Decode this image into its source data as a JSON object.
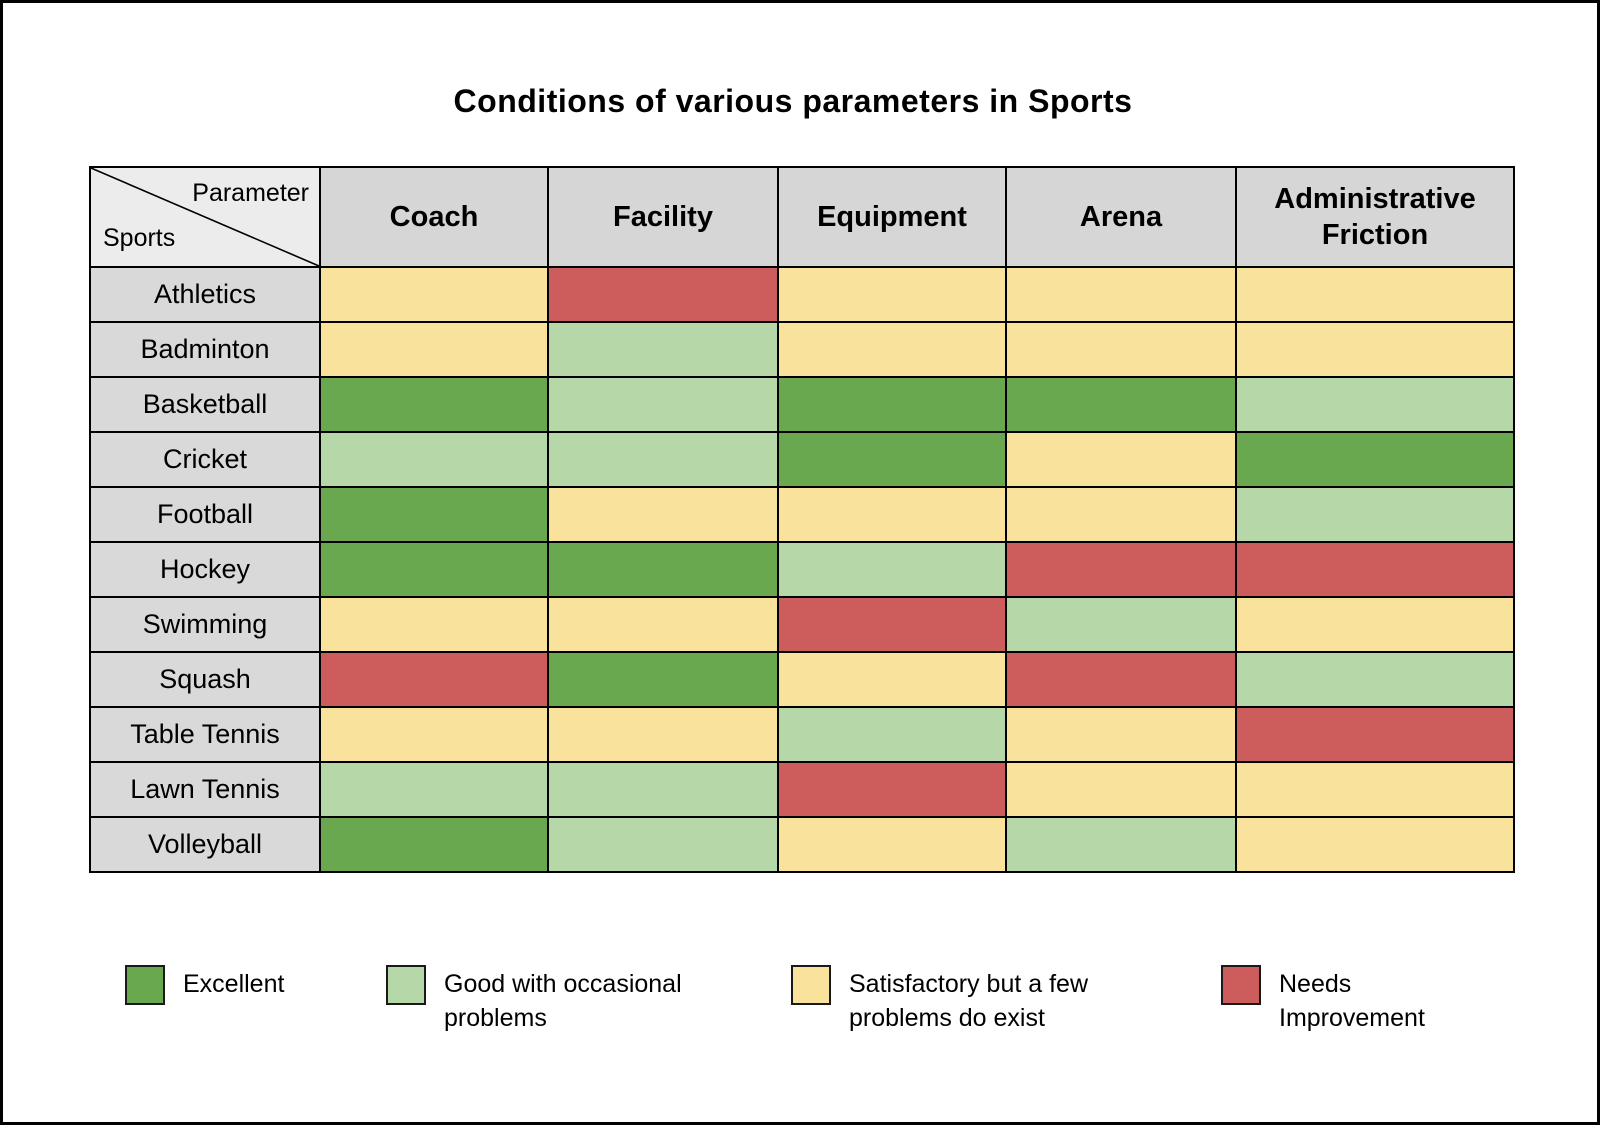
{
  "title": "Conditions of various parameters in Sports",
  "chart_data": {
    "type": "heatmap",
    "title": "Conditions of various parameters in Sports",
    "corner_labels": {
      "top_right": "Parameter",
      "bottom_left": "Sports"
    },
    "columns": [
      "Coach",
      "Facility",
      "Equipment",
      "Arena",
      "Administrative Friction"
    ],
    "rows": [
      "Athletics",
      "Badminton",
      "Basketball",
      "Cricket",
      "Football",
      "Hockey",
      "Swimming",
      "Squash",
      "Table Tennis",
      "Lawn Tennis",
      "Volleyball"
    ],
    "values": [
      [
        "satisfactory",
        "needs_improvement",
        "satisfactory",
        "satisfactory",
        "satisfactory"
      ],
      [
        "satisfactory",
        "good",
        "satisfactory",
        "satisfactory",
        "satisfactory"
      ],
      [
        "excellent",
        "good",
        "excellent",
        "excellent",
        "good"
      ],
      [
        "good",
        "good",
        "excellent",
        "satisfactory",
        "excellent"
      ],
      [
        "excellent",
        "satisfactory",
        "satisfactory",
        "satisfactory",
        "good"
      ],
      [
        "excellent",
        "excellent",
        "good",
        "needs_improvement",
        "needs_improvement"
      ],
      [
        "satisfactory",
        "satisfactory",
        "needs_improvement",
        "good",
        "satisfactory"
      ],
      [
        "needs_improvement",
        "excellent",
        "satisfactory",
        "needs_improvement",
        "good"
      ],
      [
        "satisfactory",
        "satisfactory",
        "good",
        "satisfactory",
        "needs_improvement"
      ],
      [
        "good",
        "good",
        "needs_improvement",
        "satisfactory",
        "satisfactory"
      ],
      [
        "excellent",
        "good",
        "satisfactory",
        "good",
        "satisfactory"
      ]
    ],
    "categories": {
      "excellent": {
        "label": "Excellent",
        "color": "#6aa84f"
      },
      "good": {
        "label": "Good with occasional problems",
        "color": "#b6d7a8"
      },
      "satisfactory": {
        "label": "Satisfactory but a few problems do exist",
        "color": "#f9e29b"
      },
      "needs_improvement": {
        "label": "Needs Improvement",
        "color": "#cd5c5c"
      }
    },
    "legend_order": [
      "excellent",
      "good",
      "satisfactory",
      "needs_improvement"
    ]
  }
}
